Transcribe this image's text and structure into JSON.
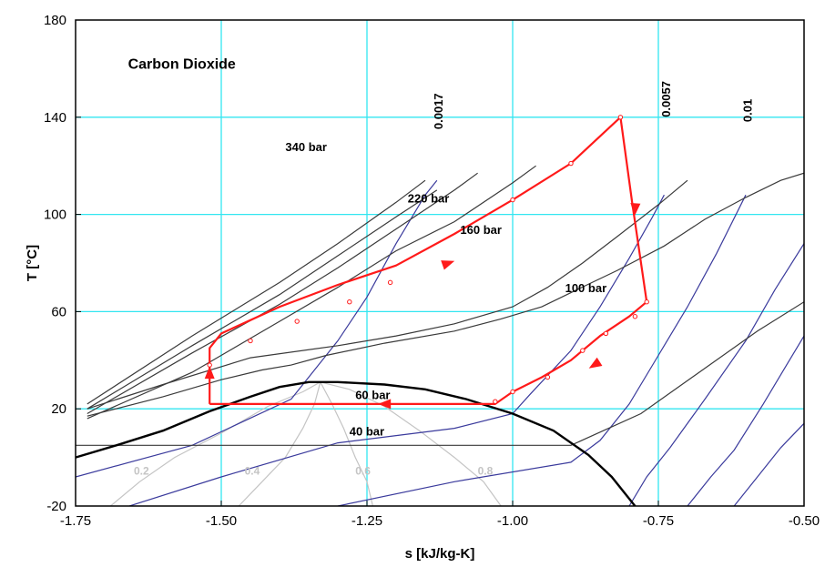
{
  "chart_data": {
    "type": "line",
    "title": "Carbon Dioxide",
    "xlabel": "s [kJ/kg-K]",
    "ylabel": "T [°C]",
    "xlim": [
      -1.75,
      -0.5
    ],
    "ylim": [
      -20,
      180
    ],
    "x_ticks": [
      -1.75,
      -1.5,
      -1.25,
      -1.0,
      -0.75,
      -0.5
    ],
    "x_tick_labels": [
      "-1.75",
      "-1.50",
      "-1.25",
      "-1.00",
      "-0.75",
      "-0.50"
    ],
    "y_ticks": [
      -20,
      20,
      60,
      100,
      140,
      180
    ],
    "y_tick_labels": [
      "-20",
      "20",
      "60",
      "100",
      "140",
      "180"
    ],
    "grid": true,
    "colors": {
      "grid": "#33e6f0",
      "isobar": "#3a3a3a",
      "isochore": "#3a3a9c",
      "dome": "#000000",
      "quality": "#c4c4c4",
      "cycle": "#ff1a1a"
    },
    "saturation_dome": [
      [
        -1.75,
        0
      ],
      [
        -1.68,
        5
      ],
      [
        -1.6,
        11
      ],
      [
        -1.52,
        19
      ],
      [
        -1.45,
        25
      ],
      [
        -1.4,
        29
      ],
      [
        -1.35,
        31
      ],
      [
        -1.3,
        31
      ],
      [
        -1.22,
        30
      ],
      [
        -1.15,
        28
      ],
      [
        -1.08,
        24
      ],
      [
        -1.0,
        18
      ],
      [
        -0.93,
        11
      ],
      [
        -0.87,
        1
      ],
      [
        -0.83,
        -8
      ],
      [
        -0.8,
        -17
      ],
      [
        -0.79,
        -20
      ]
    ],
    "isobars": [
      {
        "label": "40 bar",
        "points": [
          [
            -1.75,
            5
          ],
          [
            -0.9,
            5
          ],
          [
            -0.78,
            18
          ],
          [
            -0.68,
            35
          ],
          [
            -0.58,
            52
          ],
          [
            -0.5,
            64
          ]
        ]
      },
      {
        "label": "60 bar",
        "points": [
          [
            -1.73,
            17
          ],
          [
            -1.6,
            25
          ],
          [
            -1.5,
            32
          ],
          [
            -1.43,
            36
          ],
          [
            -1.38,
            38
          ],
          [
            -1.32,
            42
          ],
          [
            -1.22,
            47
          ],
          [
            -1.1,
            52
          ],
          [
            -1.02,
            57
          ],
          [
            -0.95,
            62
          ],
          [
            -0.89,
            69
          ],
          [
            -0.82,
            77
          ],
          [
            -0.74,
            87
          ],
          [
            -0.67,
            98
          ],
          [
            -0.6,
            107
          ],
          [
            -0.54,
            114
          ],
          [
            -0.5,
            117
          ]
        ]
      },
      {
        "label": "100 bar",
        "points": [
          [
            -1.73,
            20
          ],
          [
            -1.6,
            30
          ],
          [
            -1.45,
            41
          ],
          [
            -1.3,
            46
          ],
          [
            -1.2,
            50
          ],
          [
            -1.1,
            55
          ],
          [
            -1.0,
            62
          ],
          [
            -0.94,
            70
          ],
          [
            -0.88,
            80
          ],
          [
            -0.82,
            91
          ],
          [
            -0.75,
            104
          ],
          [
            -0.7,
            114
          ]
        ]
      },
      {
        "label": "160 bar",
        "points": [
          [
            -1.73,
            16
          ],
          [
            -1.55,
            35
          ],
          [
            -1.4,
            56
          ],
          [
            -1.3,
            70
          ],
          [
            -1.2,
            85
          ],
          [
            -1.1,
            97
          ],
          [
            -1.0,
            113
          ],
          [
            -0.96,
            120
          ]
        ]
      },
      {
        "label": "220 bar",
        "points": [
          [
            -1.73,
            18
          ],
          [
            -1.55,
            43
          ],
          [
            -1.4,
            63
          ],
          [
            -1.3,
            78
          ],
          [
            -1.2,
            94
          ],
          [
            -1.1,
            110
          ],
          [
            -1.06,
            117
          ]
        ]
      },
      {
        "label": "",
        "points": [
          [
            -1.73,
            20
          ],
          [
            -1.55,
            46
          ],
          [
            -1.4,
            67
          ],
          [
            -1.3,
            83
          ],
          [
            -1.2,
            99
          ],
          [
            -1.13,
            110
          ]
        ]
      },
      {
        "label": "340 bar",
        "points": [
          [
            -1.73,
            22
          ],
          [
            -1.55,
            50
          ],
          [
            -1.4,
            72
          ],
          [
            -1.3,
            88
          ],
          [
            -1.2,
            105
          ],
          [
            -1.15,
            114
          ]
        ]
      }
    ],
    "isochores": [
      {
        "label": "0.0017",
        "points": [
          [
            -1.75,
            -8
          ],
          [
            -1.55,
            5
          ],
          [
            -1.38,
            24
          ],
          [
            -1.35,
            33
          ],
          [
            -1.3,
            48
          ],
          [
            -1.25,
            66
          ],
          [
            -1.2,
            88
          ],
          [
            -1.15,
            108
          ],
          [
            -1.13,
            114
          ]
        ]
      },
      {
        "label": "0.0057",
        "points": [
          [
            -1.75,
            -27
          ],
          [
            -1.5,
            -8
          ],
          [
            -1.3,
            6
          ],
          [
            -1.1,
            12
          ],
          [
            -1.0,
            18
          ],
          [
            -0.97,
            26
          ],
          [
            -0.9,
            44
          ],
          [
            -0.85,
            62
          ],
          [
            -0.8,
            82
          ],
          [
            -0.76,
            99
          ],
          [
            -0.74,
            108
          ]
        ]
      },
      {
        "label": "0.01",
        "points": [
          [
            -1.3,
            -20
          ],
          [
            -1.1,
            -10
          ],
          [
            -0.9,
            -2
          ],
          [
            -0.85,
            7
          ],
          [
            -0.8,
            22
          ],
          [
            -0.75,
            42
          ],
          [
            -0.7,
            62
          ],
          [
            -0.65,
            84
          ],
          [
            -0.6,
            108
          ]
        ]
      },
      {
        "label": "",
        "points": [
          [
            -0.8,
            -20
          ],
          [
            -0.77,
            -8
          ],
          [
            -0.73,
            4
          ],
          [
            -0.67,
            24
          ],
          [
            -0.6,
            48
          ],
          [
            -0.55,
            69
          ],
          [
            -0.5,
            88
          ]
        ]
      },
      {
        "label": "",
        "points": [
          [
            -0.7,
            -20
          ],
          [
            -0.66,
            -8
          ],
          [
            -0.62,
            3
          ],
          [
            -0.57,
            22
          ],
          [
            -0.53,
            38
          ],
          [
            -0.5,
            50
          ]
        ]
      },
      {
        "label": "",
        "points": [
          [
            -0.62,
            -20
          ],
          [
            -0.58,
            -8
          ],
          [
            -0.54,
            4
          ],
          [
            -0.5,
            14
          ]
        ]
      }
    ],
    "quality_lines": [
      {
        "label": "0.2",
        "points": [
          [
            -1.69,
            -20
          ],
          [
            -1.64,
            -10
          ],
          [
            -1.58,
            0
          ],
          [
            -1.5,
            10
          ],
          [
            -1.42,
            21
          ],
          [
            -1.36,
            27
          ],
          [
            -1.33,
            31
          ]
        ]
      },
      {
        "label": "0.4",
        "points": [
          [
            -1.47,
            -20
          ],
          [
            -1.43,
            -10
          ],
          [
            -1.39,
            0
          ],
          [
            -1.36,
            12
          ],
          [
            -1.34,
            22
          ],
          [
            -1.33,
            31
          ]
        ]
      },
      {
        "label": "0.6",
        "points": [
          [
            -1.24,
            -20
          ],
          [
            -1.25,
            -10
          ],
          [
            -1.27,
            0
          ],
          [
            -1.29,
            12
          ],
          [
            -1.31,
            22
          ],
          [
            -1.33,
            31
          ]
        ]
      },
      {
        "label": "0.8",
        "points": [
          [
            -1.02,
            -20
          ],
          [
            -1.05,
            -10
          ],
          [
            -1.1,
            0
          ],
          [
            -1.16,
            11
          ],
          [
            -1.22,
            21
          ],
          [
            -1.28,
            28
          ],
          [
            -1.33,
            31
          ]
        ]
      }
    ],
    "cycle": {
      "points": [
        [
          -1.52,
          22
        ],
        [
          -1.03,
          22
        ],
        [
          -1.0,
          27
        ],
        [
          -0.95,
          33
        ],
        [
          -0.9,
          40
        ],
        [
          -0.85,
          50
        ],
        [
          -0.8,
          58
        ],
        [
          -0.77,
          64
        ],
        [
          -0.795,
          105
        ],
        [
          -0.815,
          140
        ],
        [
          -0.9,
          121
        ],
        [
          -1.0,
          106
        ],
        [
          -1.1,
          92
        ],
        [
          -1.2,
          79
        ],
        [
          -1.3,
          71
        ],
        [
          -1.4,
          62
        ],
        [
          -1.5,
          51
        ],
        [
          -1.52,
          45
        ],
        [
          -1.52,
          38
        ],
        [
          -1.52,
          22
        ]
      ],
      "markers": [
        [
          -1.52,
          38
        ],
        [
          -1.28,
          64
        ],
        [
          -1.21,
          72
        ],
        [
          -1.37,
          56
        ],
        [
          -1.45,
          48
        ],
        [
          -1.0,
          106
        ],
        [
          -0.9,
          121
        ],
        [
          -0.815,
          140
        ],
        [
          -0.77,
          64
        ],
        [
          -0.79,
          58
        ],
        [
          -0.84,
          51
        ],
        [
          -0.88,
          44
        ],
        [
          -0.94,
          33
        ],
        [
          -1.0,
          27
        ],
        [
          -1.03,
          23
        ]
      ],
      "arrows": [
        {
          "at": [
            -1.11,
            80
          ],
          "toward": [
            -1.05,
            85
          ]
        },
        {
          "at": [
            -0.79,
            102
          ],
          "toward": [
            -0.792,
            95
          ]
        },
        {
          "at": [
            -0.86,
            38
          ],
          "toward": [
            -0.88,
            35
          ]
        },
        {
          "at": [
            -1.22,
            22
          ],
          "toward": [
            -1.28,
            22
          ]
        },
        {
          "at": [
            -1.52,
            35
          ],
          "toward": [
            -1.52,
            39
          ]
        }
      ]
    },
    "isobar_label_positions": [
      {
        "text": "340 bar",
        "at": [
          -1.39,
          126
        ]
      },
      {
        "text": "220 bar",
        "at": [
          -1.18,
          105
        ]
      },
      {
        "text": "160 bar",
        "at": [
          -1.09,
          92
        ]
      },
      {
        "text": "100 bar",
        "at": [
          -0.91,
          68
        ]
      },
      {
        "text": "60 bar",
        "at": [
          -1.27,
          24
        ]
      },
      {
        "text": "40 bar",
        "at": [
          -1.28,
          9
        ]
      }
    ],
    "isochore_label_positions": [
      {
        "text": "0.0017",
        "at": [
          -1.12,
          135
        ],
        "rotate": -90
      },
      {
        "text": "0.0057",
        "at": [
          -0.73,
          140
        ],
        "rotate": -90
      },
      {
        "text": "0.01",
        "at": [
          -0.59,
          138
        ],
        "rotate": -90
      }
    ],
    "quality_label_positions": [
      {
        "text": "0.2",
        "at": [
          -1.65,
          -7
        ]
      },
      {
        "text": "0.4",
        "at": [
          -1.46,
          -7
        ]
      },
      {
        "text": "0.6",
        "at": [
          -1.27,
          -7
        ]
      },
      {
        "text": "0.8",
        "at": [
          -1.06,
          -7
        ]
      }
    ],
    "title_position": [
      -1.66,
      160
    ]
  }
}
